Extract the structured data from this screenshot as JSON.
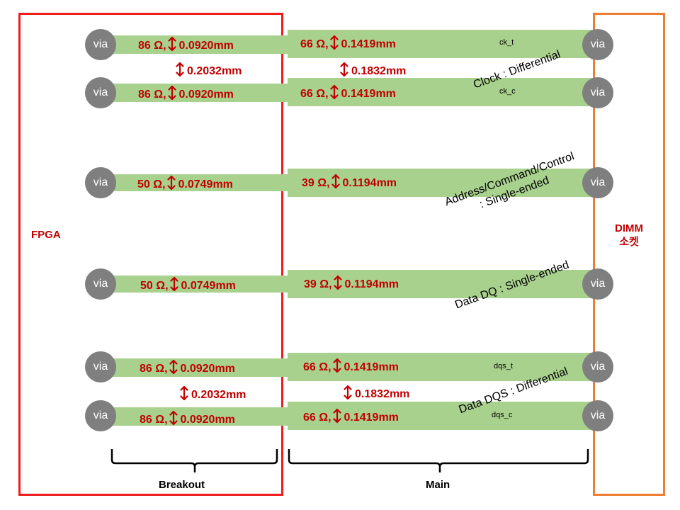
{
  "left_block": {
    "label": "FPGA"
  },
  "right_block": {
    "label_line1": "DIMM",
    "label_line2": "소켓"
  },
  "via_label": "via",
  "clock": {
    "ck_t": {
      "net": "ck_t",
      "breakout": {
        "imp": "86 Ω,",
        "width": "0.0920mm"
      },
      "main": {
        "imp": "66 Ω,",
        "width": "0.1419mm"
      }
    },
    "spacing": {
      "breakout": "0.2032mm",
      "main": "0.1832mm"
    },
    "ck_c": {
      "net": "ck_c",
      "breakout": {
        "imp": "86 Ω,",
        "width": "0.0920mm"
      },
      "main": {
        "imp": "66 Ω,",
        "width": "0.1419mm"
      }
    },
    "desc": "Clock : Differential"
  },
  "address": {
    "breakout": {
      "imp": "50 Ω,",
      "width": "0.0749mm"
    },
    "main": {
      "imp": "39 Ω,",
      "width": "0.1194mm"
    },
    "desc_line1": "Address/Command/Control",
    "desc_line2": ": Single-ended"
  },
  "data": {
    "breakout": {
      "imp": "50 Ω,",
      "width": "0.0749mm"
    },
    "main": {
      "imp": "39 Ω,",
      "width": "0.1194mm"
    },
    "desc": "Data DQ : Single-ended"
  },
  "dqs": {
    "dqs_t": {
      "net": "dqs_t",
      "breakout": {
        "imp": "86 Ω,",
        "width": "0.0920mm"
      },
      "main": {
        "imp": "66 Ω,",
        "width": "0.1419mm"
      }
    },
    "spacing": {
      "breakout": "0.2032mm",
      "main": "0.1832mm"
    },
    "dqs_c": {
      "net": "dqs_c",
      "breakout": {
        "imp": "86 Ω,",
        "width": "0.0920mm"
      },
      "main": {
        "imp": "66 Ω,",
        "width": "0.1419mm"
      }
    },
    "desc": "Data DQS : Differential"
  },
  "sections": {
    "breakout": "Breakout",
    "main": "Main"
  },
  "colors": {
    "fpga_border": "#ee1c1c",
    "dimm_border": "#ed7d31",
    "trace": "#a9d18e",
    "via": "#7f7f7f",
    "label": "#c00000"
  }
}
